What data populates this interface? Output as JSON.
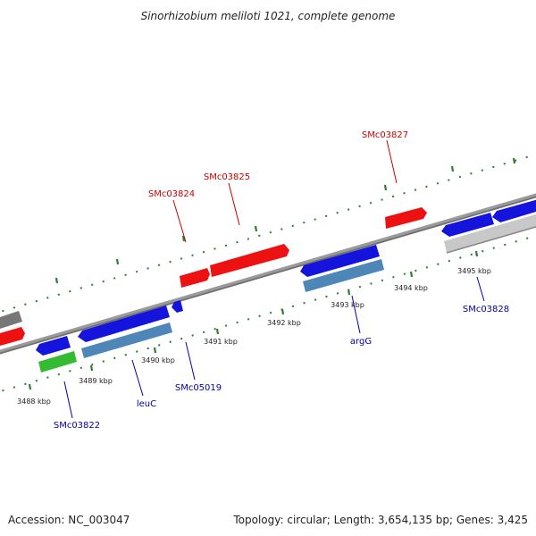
{
  "header": {
    "title": "Sinorhizobium meliloti 1021, complete genome"
  },
  "footer": {
    "accession": "Accession: NC_003047",
    "summary": "Topology: circular; Length: 3,654,135 bp; Genes: 3,425"
  },
  "colors": {
    "backbone": "#8a8a8a",
    "tick": "#2e7d32",
    "forward_gene": "#ee1111",
    "reverse_gene": "#1414dd",
    "rna_gene": "#4f86b8",
    "other_gene": "#33bb33",
    "pseudo_gene": "#c8c8c8",
    "grey_gene": "#777777",
    "forward_label": "#cc0000",
    "reverse_label": "#0000aa"
  },
  "scale_labels": [
    "3488 kbp",
    "3489 kbp",
    "3490 kbp",
    "3491 kbp",
    "3492 kbp",
    "3493 kbp",
    "3494 kbp",
    "3495 kbp"
  ],
  "gene_labels": {
    "forward": [
      "SMc03824",
      "SMc03825",
      "SMc03827"
    ],
    "reverse": [
      "SMc03822",
      "leuC",
      "SMc05019",
      "argG",
      "SMc03828"
    ]
  }
}
